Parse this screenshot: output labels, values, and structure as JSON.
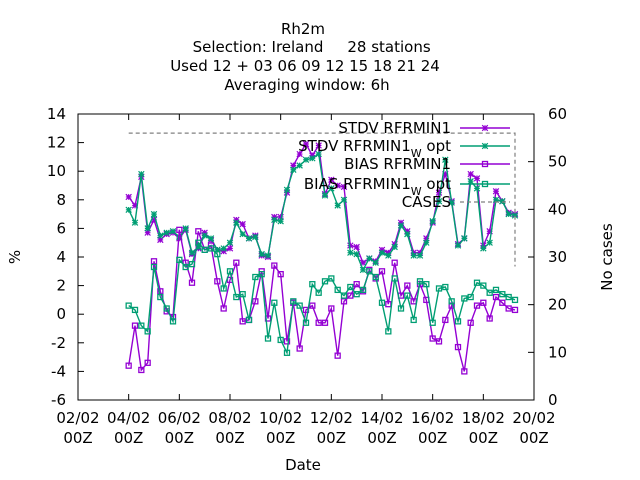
{
  "header": {
    "title_line1": "Rh2m",
    "title_line2_label": "Selection: Ireland",
    "title_line2_stations": "28 stations",
    "title_line3": "Used  12 + 03 06 09 12 15 18 21 24",
    "title_line4": "Averaging window:  6h"
  },
  "chart_data": {
    "type": "line",
    "xlabel": "Date",
    "ylabel": "%",
    "y2label": "No cases",
    "xlim": [
      0,
      18
    ],
    "ylim": [
      -6,
      14
    ],
    "y2lim": [
      0,
      60
    ],
    "x_ticks": [
      0,
      2,
      4,
      6,
      8,
      10,
      12,
      14,
      16,
      18
    ],
    "x_tick_labels": [
      [
        "02/02",
        "00Z"
      ],
      [
        "04/02",
        "00Z"
      ],
      [
        "06/02",
        "00Z"
      ],
      [
        "08/02",
        "00Z"
      ],
      [
        "10/02",
        "00Z"
      ],
      [
        "12/02",
        "00Z"
      ],
      [
        "14/02",
        "00Z"
      ],
      [
        "16/02",
        "00Z"
      ],
      [
        "18/02",
        "00Z"
      ],
      [
        "20/02",
        "00Z"
      ]
    ],
    "y_ticks": [
      -6,
      -4,
      -2,
      0,
      2,
      4,
      6,
      8,
      10,
      12,
      14
    ],
    "y2_ticks": [
      0,
      10,
      20,
      30,
      40,
      50,
      60
    ],
    "legend_position": "top-right",
    "series": [
      {
        "name": "STDV RFRMIN1",
        "color": "#9400d3",
        "marker": "star",
        "axis": "y",
        "x": [
          2.0,
          2.25,
          2.5,
          2.75,
          3.0,
          3.25,
          3.5,
          3.75,
          4.0,
          4.25,
          4.5,
          4.75,
          5.0,
          5.25,
          5.5,
          5.75,
          6.0,
          6.25,
          6.5,
          6.75,
          7.0,
          7.25,
          7.5,
          7.75,
          8.0,
          8.25,
          8.5,
          8.75,
          9.0,
          9.25,
          9.5,
          9.75,
          10.0,
          10.25,
          10.5,
          10.75,
          11.0,
          11.25,
          11.5,
          11.75,
          12.0,
          12.25,
          12.5,
          12.75,
          13.0,
          13.25,
          13.5,
          13.75,
          14.0,
          14.25,
          14.5,
          14.75,
          15.0,
          15.25,
          15.5,
          15.75,
          16.0,
          16.25,
          16.5,
          16.75,
          17.0,
          17.25
        ],
        "values": [
          8.2,
          7.6,
          9.6,
          5.7,
          6.6,
          5.2,
          5.6,
          5.7,
          5.3,
          5.9,
          4.2,
          4.6,
          5.7,
          5.2,
          4.5,
          4.4,
          4.6,
          6.6,
          6.3,
          5.3,
          5.5,
          4.1,
          4.0,
          6.8,
          6.8,
          8.5,
          10.4,
          11.2,
          11.9,
          11.1,
          11.8,
          8.4,
          9.4,
          9.0,
          8.9,
          4.8,
          4.7,
          3.6,
          3.9,
          3.7,
          4.5,
          4.3,
          4.9,
          6.4,
          5.8,
          4.3,
          4.3,
          5.3,
          6.4,
          8.5,
          9.8,
          7.9,
          4.9,
          5.3,
          9.8,
          9.5,
          4.8,
          5.8,
          8.6,
          7.9,
          7.1,
          7.0
        ]
      },
      {
        "name": "STDV RFRMIN1 W opt",
        "color": "#009e73",
        "marker": "star",
        "axis": "y",
        "x": [
          2.0,
          2.25,
          2.5,
          2.75,
          3.0,
          3.25,
          3.5,
          3.75,
          4.0,
          4.25,
          4.5,
          4.75,
          5.0,
          5.25,
          5.5,
          5.75,
          6.0,
          6.25,
          6.5,
          6.75,
          7.0,
          7.25,
          7.5,
          7.75,
          8.0,
          8.25,
          8.5,
          8.75,
          9.0,
          9.25,
          9.5,
          9.75,
          10.0,
          10.25,
          10.5,
          10.75,
          11.0,
          11.25,
          11.5,
          11.75,
          12.0,
          12.25,
          12.5,
          12.75,
          13.0,
          13.25,
          13.5,
          13.75,
          14.0,
          14.25,
          14.5,
          14.75,
          15.0,
          15.25,
          15.5,
          15.75,
          16.0,
          16.25,
          16.5,
          16.75,
          17.0,
          17.25
        ],
        "values": [
          7.3,
          6.4,
          9.8,
          6.0,
          7.0,
          5.5,
          5.7,
          5.8,
          5.4,
          6.0,
          4.3,
          4.7,
          5.5,
          5.3,
          4.5,
          4.6,
          5.0,
          6.4,
          5.6,
          5.3,
          5.4,
          4.2,
          4.1,
          6.6,
          6.5,
          8.7,
          10.1,
          10.4,
          10.8,
          10.9,
          11.2,
          8.3,
          8.8,
          7.6,
          8.0,
          4.3,
          4.2,
          3.1,
          3.9,
          3.6,
          4.3,
          4.1,
          4.7,
          6.2,
          5.6,
          4.1,
          4.1,
          5.0,
          6.5,
          7.9,
          10.8,
          7.8,
          4.8,
          5.3,
          9.3,
          8.8,
          4.6,
          5.0,
          8.0,
          7.9,
          7.0,
          6.9
        ]
      },
      {
        "name": "BIAS RFRMIN1",
        "color": "#9400d3",
        "marker": "square",
        "axis": "y",
        "x": [
          2.0,
          2.25,
          2.5,
          2.75,
          3.0,
          3.25,
          3.5,
          3.75,
          4.0,
          4.25,
          4.5,
          4.75,
          5.0,
          5.25,
          5.5,
          5.75,
          6.0,
          6.25,
          6.5,
          6.75,
          7.0,
          7.25,
          7.5,
          7.75,
          8.0,
          8.25,
          8.5,
          8.75,
          9.0,
          9.25,
          9.5,
          9.75,
          10.0,
          10.25,
          10.5,
          10.75,
          11.0,
          11.25,
          11.5,
          11.75,
          12.0,
          12.25,
          12.5,
          12.75,
          13.0,
          13.25,
          13.5,
          13.75,
          14.0,
          14.25,
          14.5,
          14.75,
          15.0,
          15.25,
          15.5,
          15.75,
          16.0,
          16.25,
          16.5,
          16.75,
          17.0,
          17.25
        ],
        "values": [
          -3.6,
          -0.8,
          -3.9,
          -3.4,
          3.7,
          1.6,
          0.2,
          -0.2,
          5.9,
          3.6,
          2.2,
          5.8,
          4.5,
          4.8,
          2.3,
          0.4,
          2.4,
          3.6,
          -0.5,
          -0.4,
          0.9,
          3.0,
          -0.3,
          3.4,
          2.8,
          -1.9,
          0.8,
          -2.4,
          0.3,
          0.6,
          -0.6,
          -0.6,
          0.4,
          -2.9,
          0.9,
          1.3,
          2.1,
          1.6,
          3.1,
          2.5,
          3.0,
          0.7,
          3.6,
          1.3,
          2.0,
          0.9,
          2.1,
          1.0,
          -1.7,
          -1.9,
          -0.4,
          0.6,
          -2.3,
          -4.0,
          -0.6,
          0.6,
          0.8,
          -0.3,
          1.2,
          0.8,
          0.4,
          0.3
        ]
      },
      {
        "name": "BIAS RFRMIN1 W opt",
        "color": "#009e73",
        "marker": "square",
        "axis": "y",
        "x": [
          2.0,
          2.25,
          2.5,
          2.75,
          3.0,
          3.25,
          3.5,
          3.75,
          4.0,
          4.25,
          4.5,
          4.75,
          5.0,
          5.25,
          5.5,
          5.75,
          6.0,
          6.25,
          6.5,
          6.75,
          7.0,
          7.25,
          7.5,
          7.75,
          8.0,
          8.25,
          8.5,
          8.75,
          9.0,
          9.25,
          9.5,
          9.75,
          10.0,
          10.25,
          10.5,
          10.75,
          11.0,
          11.25,
          11.5,
          11.75,
          12.0,
          12.25,
          12.5,
          12.75,
          13.0,
          13.25,
          13.5,
          13.75,
          14.0,
          14.25,
          14.5,
          14.75,
          15.0,
          15.25,
          15.5,
          15.75,
          16.0,
          16.25,
          16.5,
          16.75,
          17.0,
          17.25
        ],
        "values": [
          0.6,
          0.3,
          -0.8,
          -1.2,
          3.3,
          1.2,
          0.4,
          -0.5,
          3.8,
          3.3,
          3.5,
          5.0,
          4.5,
          4.6,
          4.2,
          1.8,
          3.0,
          1.2,
          1.4,
          -0.4,
          2.6,
          2.8,
          -1.7,
          0.8,
          -1.8,
          -2.7,
          0.9,
          0.6,
          -0.6,
          2.1,
          1.5,
          2.3,
          2.5,
          1.7,
          1.3,
          1.9,
          1.4,
          1.7,
          3.0,
          2.6,
          0.8,
          -1.2,
          2.5,
          0.4,
          1.3,
          -0.4,
          2.3,
          2.1,
          -0.6,
          1.8,
          1.9,
          0.9,
          -0.5,
          1.1,
          1.2,
          2.2,
          2.0,
          1.5,
          1.7,
          1.4,
          1.2,
          1.0
        ]
      },
      {
        "name": "CASES",
        "color": "#808080",
        "marker": "none",
        "dash": "dashed",
        "axis": "y2",
        "x": [
          2.0,
          17.25,
          17.25
        ],
        "values": [
          56,
          56,
          28
        ]
      }
    ]
  }
}
